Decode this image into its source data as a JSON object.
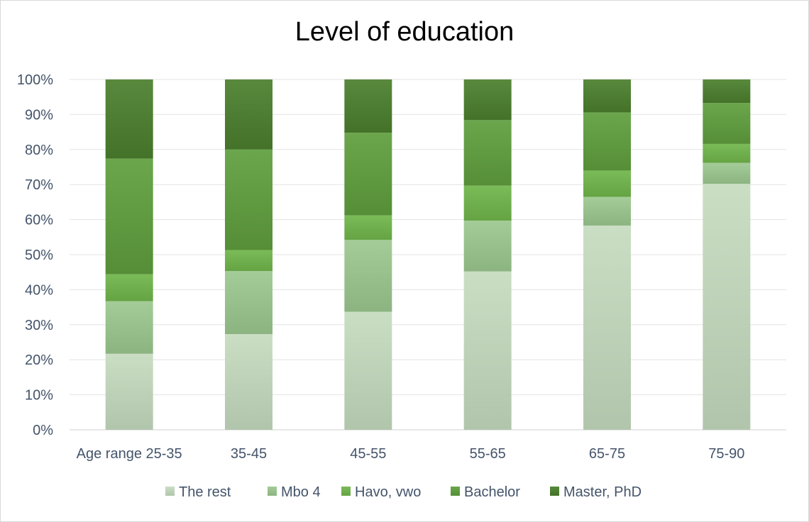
{
  "chart_data": {
    "type": "bar",
    "stacked": true,
    "normalized": true,
    "title": "Level of education",
    "categories": [
      "Age range 25-35",
      "35-45",
      "45-55",
      "55-65",
      "65-75",
      "75-90"
    ],
    "y_ticks": [
      "0%",
      "10%",
      "20%",
      "30%",
      "40%",
      "50%",
      "60%",
      "70%",
      "80%",
      "90%",
      "100%"
    ],
    "ylim": [
      0,
      100
    ],
    "grid": true,
    "legend_position": "bottom",
    "series": [
      {
        "name": "The rest",
        "color": "#c5dbbf",
        "values": [
          21.7,
          27.3,
          33.7,
          45.2,
          58.3,
          70.2
        ]
      },
      {
        "name": "Mbo 4",
        "color": "#9cc88f",
        "values": [
          15.0,
          18.0,
          20.5,
          14.5,
          8.2,
          6.0
        ]
      },
      {
        "name": "Havo, vwo",
        "color": "#70b54a",
        "values": [
          7.7,
          6.0,
          7.0,
          10.0,
          7.5,
          5.4
        ]
      },
      {
        "name": "Bachelor",
        "color": "#5e9e3c",
        "values": [
          33.0,
          28.7,
          23.6,
          18.7,
          16.6,
          11.7
        ]
      },
      {
        "name": "Master, PhD",
        "color": "#4a7f2c",
        "values": [
          22.6,
          20.0,
          15.2,
          11.6,
          9.4,
          6.7
        ]
      }
    ]
  }
}
